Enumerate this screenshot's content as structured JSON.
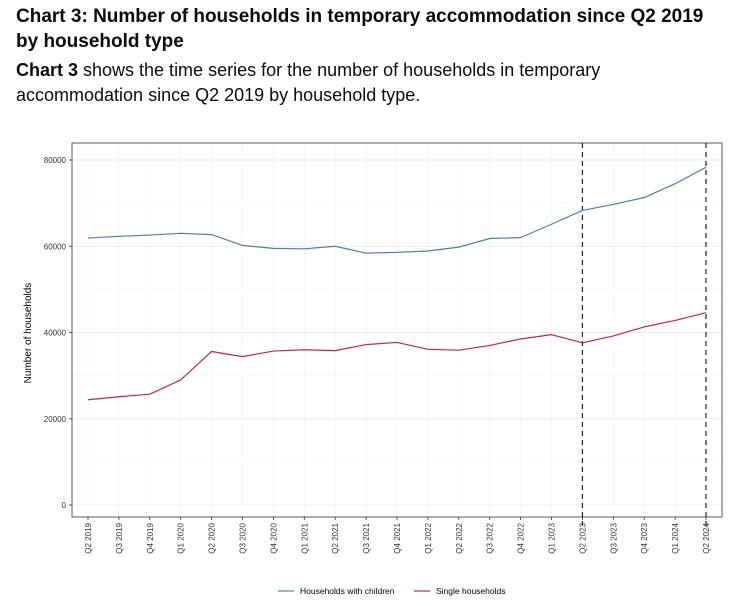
{
  "heading": "Chart 3: Number of households in temporary accommodation since Q2 2019 by household type",
  "intro": {
    "ref": "Chart 3",
    "text": " shows the time series for the number of households in temporary accommodation since Q2 2019 by household type."
  },
  "colors": {
    "children": "#4f7fae",
    "single": "#c4264a"
  },
  "chart_data": {
    "type": "line",
    "title": "",
    "xlabel": "",
    "ylabel": "Number of households",
    "ylim": [
      0,
      80000
    ],
    "y_ticks": [
      0,
      20000,
      40000,
      60000,
      80000
    ],
    "y_tick_labels": [
      "0",
      "20000",
      "40000",
      "60000",
      "80000"
    ],
    "categories": [
      "Q2 2019",
      "Q3 2019",
      "Q4 2019",
      "Q1 2020",
      "Q2 2020",
      "Q3 2020",
      "Q4 2020",
      "Q1 2021",
      "Q2 2021",
      "Q3 2021",
      "Q4 2021",
      "Q1 2022",
      "Q2 2022",
      "Q3 2022",
      "Q4 2022",
      "Q1 2023",
      "Q2 2023",
      "Q3 2023",
      "Q4 2023",
      "Q1 2024",
      "Q2 2024"
    ],
    "series": [
      {
        "name": "Households with children",
        "values": [
          61900,
          62300,
          62600,
          63000,
          62700,
          60200,
          59500,
          59400,
          60000,
          58400,
          58600,
          58900,
          59800,
          61800,
          62000,
          65100,
          68300,
          69700,
          71300,
          74500,
          78300
        ]
      },
      {
        "name": "Single households",
        "values": [
          24400,
          25100,
          25700,
          29000,
          35600,
          34400,
          35700,
          36000,
          35800,
          37200,
          37700,
          36100,
          35900,
          37000,
          38500,
          39500,
          37600,
          39200,
          41300,
          42800,
          44600
        ]
      }
    ],
    "reference_lines": [
      "Q2 2023",
      "Q2 2024"
    ],
    "grid": true,
    "legend": "bottom"
  }
}
